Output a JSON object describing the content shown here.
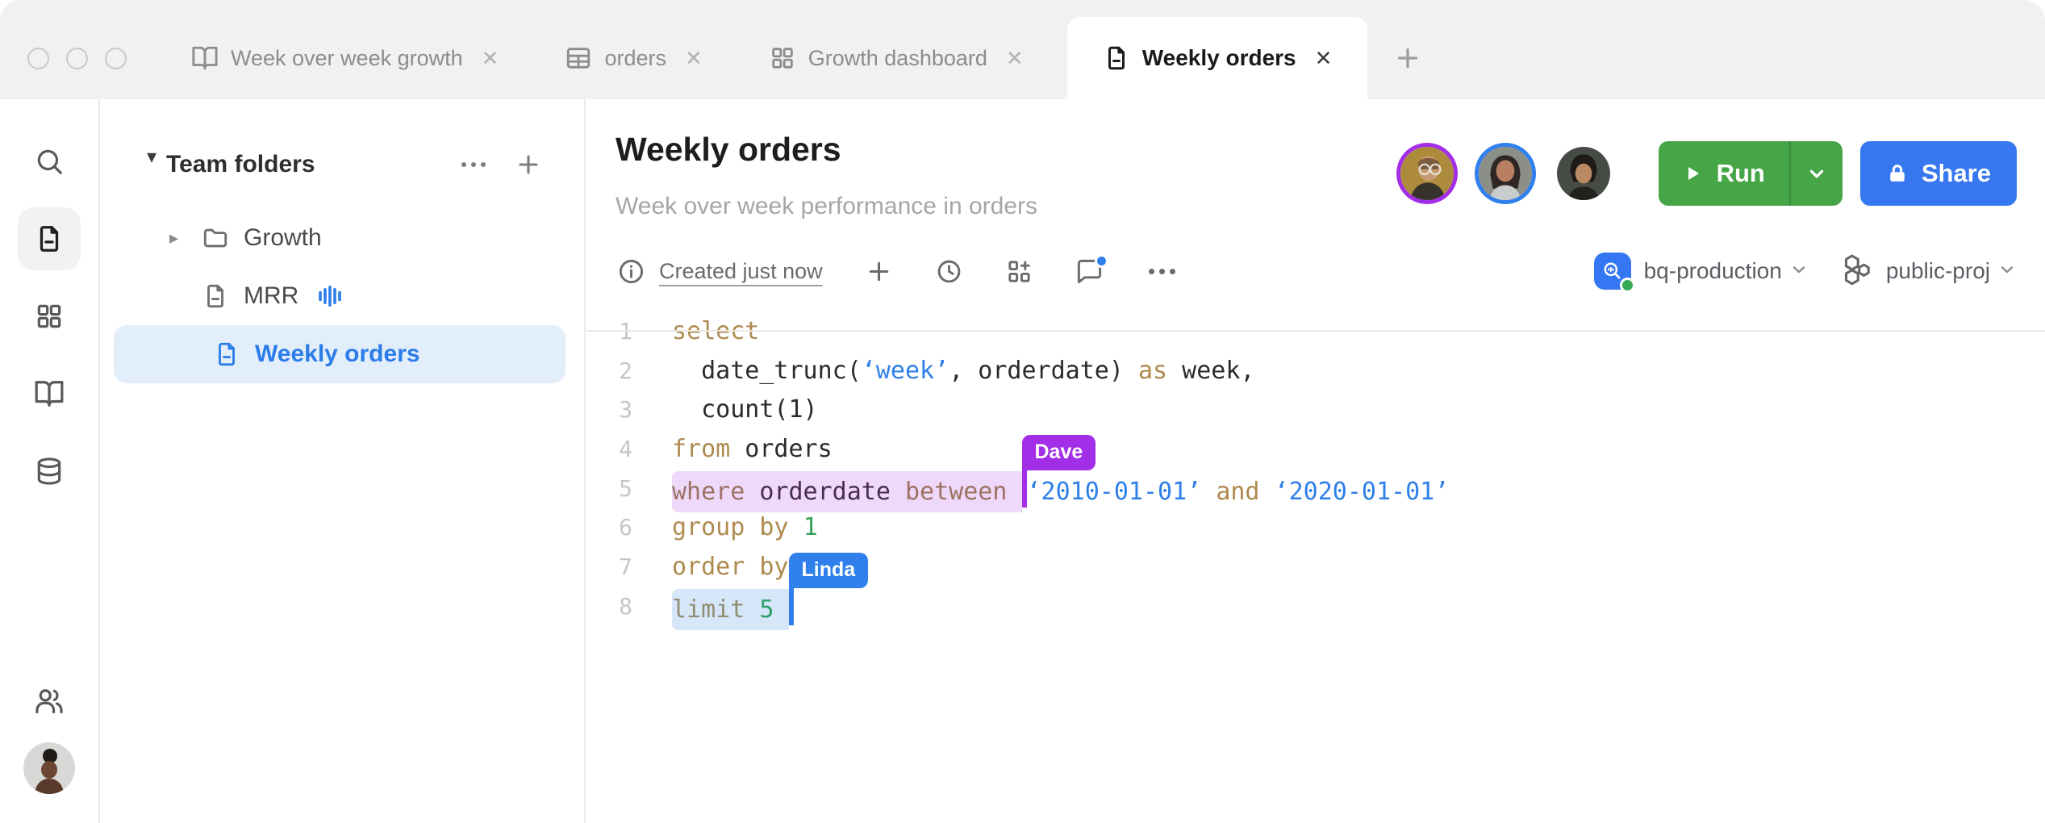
{
  "window": {
    "controls": [
      "close",
      "minimize",
      "zoom"
    ]
  },
  "icons": {
    "close": "✕",
    "caret_down": "▾",
    "caret_right": "▸"
  },
  "tabs": [
    {
      "label": "Week over week growth",
      "icon": "book-icon",
      "active": false
    },
    {
      "label": "orders",
      "icon": "table-icon",
      "active": false
    },
    {
      "label": "Growth dashboard",
      "icon": "dashboard-icon",
      "active": false
    },
    {
      "label": "Weekly orders",
      "icon": "file-icon",
      "active": true
    }
  ],
  "sidebar": {
    "items": [
      "search",
      "files",
      "apps",
      "library",
      "database",
      "members"
    ],
    "active": "files"
  },
  "tree": {
    "header": "Team folders",
    "items": [
      {
        "label": "Growth",
        "type": "folder"
      },
      {
        "label": "MRR",
        "type": "file",
        "indicator": "activity"
      },
      {
        "label": "Weekly orders",
        "type": "file",
        "selected": true
      }
    ]
  },
  "doc": {
    "title": "Weekly orders",
    "subtitle": "Week over week performance in orders",
    "status": "Created just now",
    "run_label": "Run",
    "share_label": "Share",
    "connection": "bq-production",
    "project": "public-proj"
  },
  "editor": {
    "collaborators": {
      "dave": {
        "name": "Dave",
        "color": "#A32EE8",
        "selection": "#EFD9FA"
      },
      "linda": {
        "name": "Linda",
        "color": "#2F80ED",
        "selection": "#D6E7F9"
      }
    },
    "lines": [
      {
        "n": "1",
        "tokens": [
          {
            "t": "select",
            "c": "kw"
          }
        ]
      },
      {
        "n": "2",
        "tokens": [
          {
            "t": "  date_trunc(",
            "c": "pl"
          },
          {
            "t": "‘week’",
            "c": "str"
          },
          {
            "t": ", orderdate) ",
            "c": "pl"
          },
          {
            "t": "as",
            "c": "kw"
          },
          {
            "t": " week,",
            "c": "pl"
          }
        ]
      },
      {
        "n": "3",
        "tokens": [
          {
            "t": "  count(1)",
            "c": "pl"
          }
        ]
      },
      {
        "n": "4",
        "tokens": [
          {
            "t": "from",
            "c": "kw"
          },
          {
            "t": " orders",
            "c": "pl"
          }
        ]
      },
      {
        "n": "5",
        "tokens": [
          {
            "t": "where",
            "c": "kw-p sel-d rd-l"
          },
          {
            "t": " ",
            "c": "sel-d"
          },
          {
            "t": "orderdate",
            "c": "id-p sel-d"
          },
          {
            "t": " ",
            "c": "sel-d"
          },
          {
            "t": "between",
            "c": "kw-p sel-d"
          },
          {
            "t": " ",
            "c": "sel-d"
          },
          {
            "caret": "dave"
          },
          {
            "t": "‘2010-01-01’",
            "c": "str"
          },
          {
            "t": " ",
            "c": "pl"
          },
          {
            "t": "and",
            "c": "kw"
          },
          {
            "t": " ",
            "c": "pl"
          },
          {
            "t": "‘2020-01-01’",
            "c": "str"
          }
        ]
      },
      {
        "n": "6",
        "tokens": [
          {
            "t": "group by",
            "c": "kw"
          },
          {
            "t": " ",
            "c": "pl"
          },
          {
            "t": "1",
            "c": "num"
          }
        ]
      },
      {
        "n": "7",
        "tokens": [
          {
            "t": "order by",
            "c": "kw"
          }
        ]
      },
      {
        "n": "8",
        "tokens": [
          {
            "t": "limit",
            "c": "kw-b sel-l rd-l"
          },
          {
            "t": " ",
            "c": "sel-l"
          },
          {
            "t": "5",
            "c": "num-b sel-l"
          },
          {
            "t": " ",
            "c": "sel-l"
          },
          {
            "caret": "linda"
          }
        ]
      }
    ]
  },
  "colors": {
    "tab_bar": "#F1F1EF",
    "accent_blue": "#2B7DE9",
    "selected_item_bg": "#E3EEFB",
    "run_green": "#46A546",
    "share_blue": "#3778F0",
    "keyword": "#AE8A4F",
    "string": "#2E7FE8",
    "number": "#36A35B",
    "status_dot": "#35A853",
    "comment_badge": "#2F80ED",
    "avatar_ring_1": "#A32EE8",
    "avatar_ring_2": "#2F80ED"
  }
}
